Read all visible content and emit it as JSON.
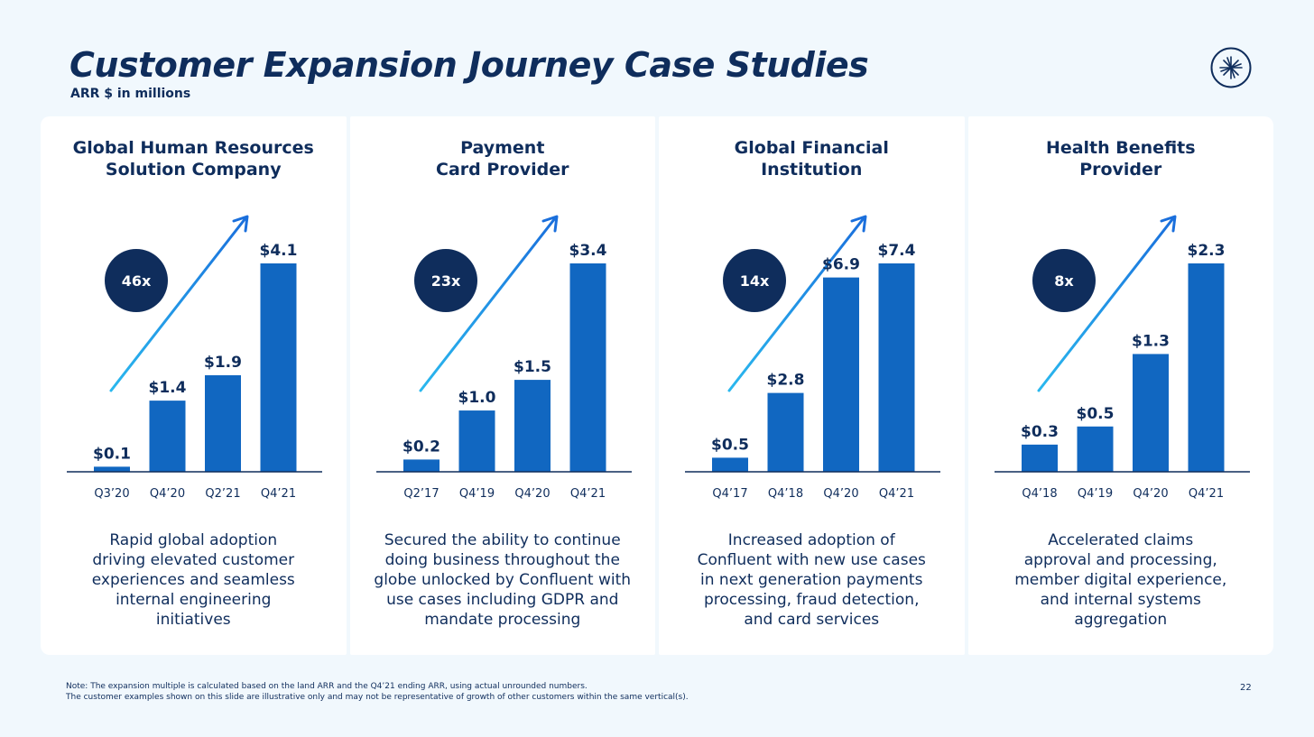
{
  "slide": {
    "title": "Customer Expansion Journey Case Studies",
    "subtitle": "ARR $ in millions",
    "page_number": "22",
    "note_line1": "Note: The expansion multiple is calculated based on the land ARR and the Q4’21 ending ARR, using actual unrounded numbers.",
    "note_line2": "The customer examples shown on this slide are illustrative only and may not be representative of growth of other customers within the same vertical(s).",
    "colors": {
      "bar": "#1167c1",
      "badge": "#0f2d5c",
      "text": "#0f2d5c",
      "arrow_start": "#2ab8ee",
      "arrow_end": "#1a6fdc",
      "background": "#f1f8fd"
    },
    "logo_icon": "confluent-logo-icon"
  },
  "cards": [
    {
      "title": "Global Human Resources\nSolution Company",
      "description": "Rapid global adoption\ndriving elevated customer\nexperiences and seamless\ninternal engineering\ninitiatives"
    },
    {
      "title": "Payment\nCard Provider",
      "description": "Secured the ability to continue\ndoing business throughout the\nglobe unlocked by Confluent with\nuse cases including GDPR and\nmandate processing"
    },
    {
      "title": "Global Financial\nInstitution",
      "description": "Increased adoption of\nConfluent with new use cases\nin next generation payments\nprocessing, fraud detection,\nand card services"
    },
    {
      "title": "Health Benefits\nProvider",
      "description": "Accelerated claims\napproval and processing,\nmember digital experience,\nand internal systems\naggregation"
    }
  ],
  "chart_data": [
    {
      "type": "bar",
      "multiple_label": "46x",
      "categories": [
        "Q3’20",
        "Q4’20",
        "Q2’21",
        "Q4’21"
      ],
      "values": [
        0.1,
        1.4,
        1.9,
        4.1
      ],
      "value_labels": [
        "$0.1",
        "$1.4",
        "$1.9",
        "$4.1"
      ]
    },
    {
      "type": "bar",
      "multiple_label": "23x",
      "categories": [
        "Q2’17",
        "Q4’19",
        "Q4’20",
        "Q4’21"
      ],
      "values": [
        0.2,
        1.0,
        1.5,
        3.4
      ],
      "value_labels": [
        "$0.2",
        "$1.0",
        "$1.5",
        "$3.4"
      ]
    },
    {
      "type": "bar",
      "multiple_label": "14x",
      "categories": [
        "Q4’17",
        "Q4’18",
        "Q4’20",
        "Q4’21"
      ],
      "values": [
        0.5,
        2.8,
        6.9,
        7.4
      ],
      "value_labels": [
        "$0.5",
        "$2.8",
        "$6.9",
        "$7.4"
      ]
    },
    {
      "type": "bar",
      "multiple_label": "8x",
      "categories": [
        "Q4’18",
        "Q4’19",
        "Q4’20",
        "Q4’21"
      ],
      "values": [
        0.3,
        0.5,
        1.3,
        2.3
      ],
      "value_labels": [
        "$0.3",
        "$0.5",
        "$1.3",
        "$2.3"
      ]
    }
  ]
}
